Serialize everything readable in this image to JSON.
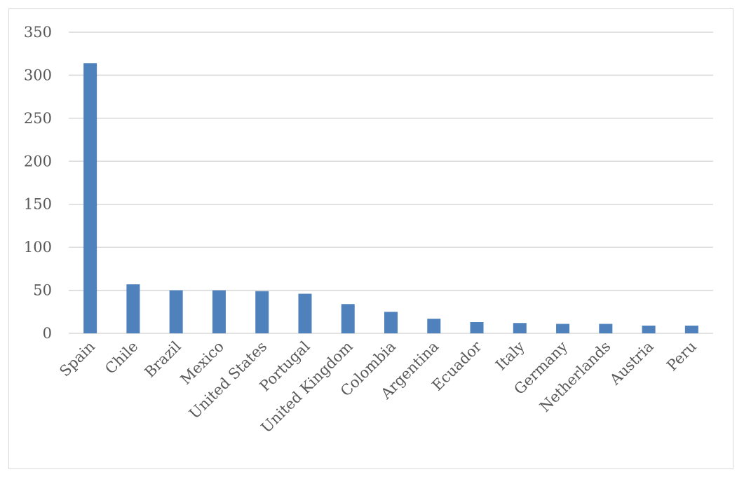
{
  "chart_data": {
    "type": "bar",
    "categories": [
      "Spain",
      "Chile",
      "Brazil",
      "Mexico",
      "United States",
      "Portugal",
      "United Kingdom",
      "Colombia",
      "Argentina",
      "Ecuador",
      "Italy",
      "Germany",
      "Netherlands",
      "Austria",
      "Peru"
    ],
    "values": [
      314,
      57,
      50,
      50,
      49,
      46,
      34,
      25,
      17,
      13,
      12,
      11,
      11,
      9,
      9
    ],
    "title": "",
    "xlabel": "",
    "ylabel": "",
    "ylim": [
      0,
      350
    ],
    "yticks": [
      0,
      50,
      100,
      150,
      200,
      250,
      300,
      350
    ],
    "grid": "horizontal",
    "legend": "none",
    "bar_color": "#4f81bd"
  }
}
